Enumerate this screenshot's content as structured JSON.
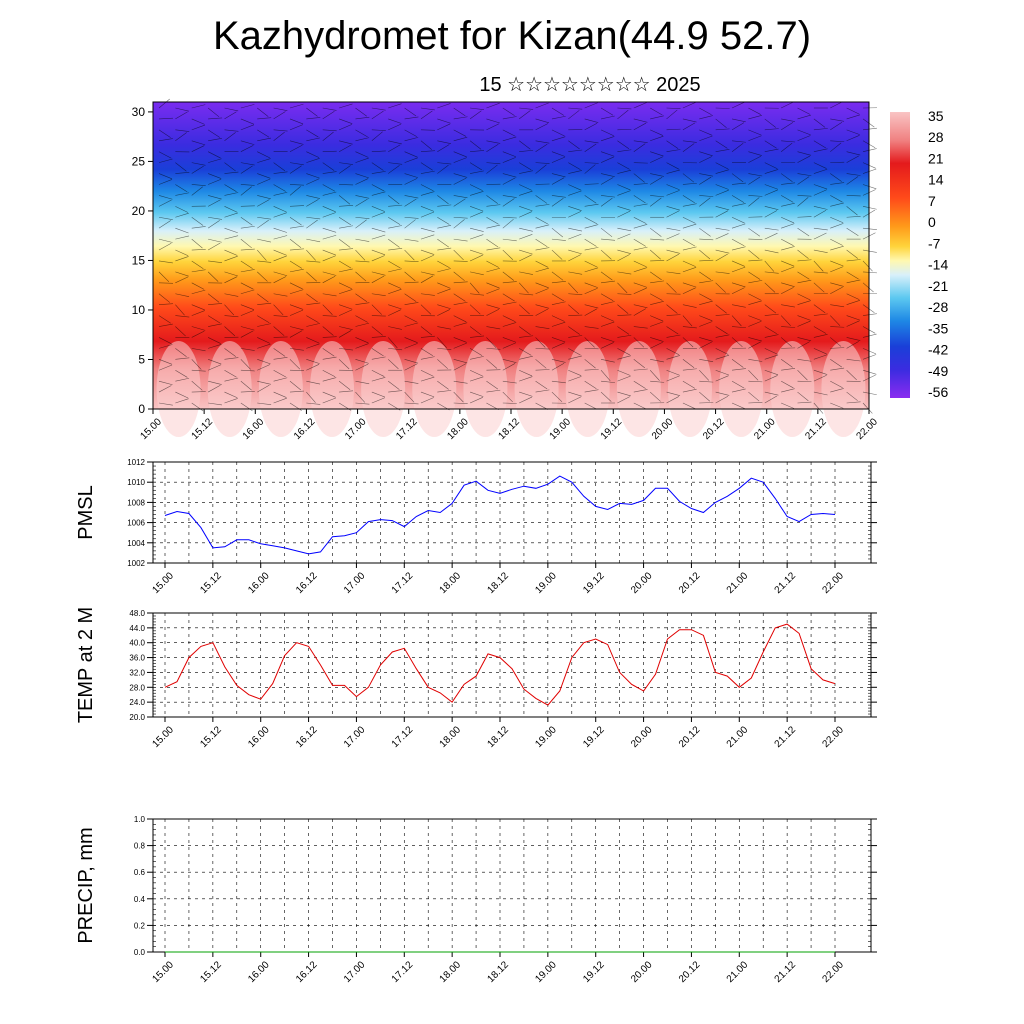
{
  "title": "Kazhydromet for Kizan(44.9 52.7)",
  "subtitle": "15 ☆☆☆☆☆☆☆☆ 2025",
  "chart_data": [
    {
      "type": "heatmap",
      "name": "cross-section",
      "x_ticks": [
        "15.00",
        "15.12",
        "16.00",
        "16.12",
        "17.00",
        "17.12",
        "18.00",
        "18.12",
        "19.00",
        "19.12",
        "20.00",
        "20.12",
        "21.00",
        "21.12",
        "22.00"
      ],
      "y_ticks": [
        "0",
        "5",
        "10",
        "15",
        "20",
        "25",
        "30"
      ],
      "ylim": [
        0,
        31
      ],
      "colorbar_labels": [
        "35",
        "28",
        "21",
        "14",
        "7",
        "0",
        "-7",
        "-14",
        "-21",
        "-28",
        "-35",
        "-42",
        "-49",
        "-56"
      ],
      "colorbar_colors": [
        "#f4b5b5",
        "#e41a1c",
        "#ff4500",
        "#ff8c00",
        "#ffd700",
        "#fff5a0",
        "#c8eafa",
        "#4fc3f7",
        "#1565c0",
        "#3b3bd8",
        "#7a2cf0"
      ],
      "description_levels_temp": [
        {
          "height": 0,
          "value": 35
        },
        {
          "height": 10,
          "value": 21
        },
        {
          "height": 16,
          "value": -7
        },
        {
          "height": 19,
          "value": -21
        },
        {
          "height": 22,
          "value": -35
        },
        {
          "height": 25,
          "value": -49
        },
        {
          "height": 28,
          "value": -56
        },
        {
          "height": 31,
          "value": -56
        }
      ]
    },
    {
      "type": "line",
      "ylabel": "PMSL",
      "color": "#0000ff",
      "ylim": [
        1002,
        1012
      ],
      "y_ticks": [
        "1002",
        "1004",
        "1006",
        "1008",
        "1010",
        "1012"
      ],
      "x_ticks": [
        "15.00",
        "15.12",
        "16.00",
        "16.12",
        "17.00",
        "17.12",
        "18.00",
        "18.12",
        "19.00",
        "19.12",
        "20.00",
        "20.12",
        "21.00",
        "21.12",
        "22.00"
      ],
      "values": [
        1006.7,
        1007.1,
        1006.9,
        1005.5,
        1003.5,
        1003.6,
        1004.3,
        1004.3,
        1003.9,
        1003.7,
        1003.5,
        1003.2,
        1002.9,
        1003.1,
        1004.6,
        1004.7,
        1005.0,
        1006.1,
        1006.3,
        1006.2,
        1005.6,
        1006.6,
        1007.2,
        1007.0,
        1007.9,
        1009.7,
        1010.1,
        1009.2,
        1008.9,
        1009.3,
        1009.6,
        1009.4,
        1009.8,
        1010.6,
        1010.0,
        1008.6,
        1007.6,
        1007.3,
        1007.9,
        1007.8,
        1008.2,
        1009.4,
        1009.4,
        1008.1,
        1007.4,
        1007.0,
        1008.0,
        1008.6,
        1009.4,
        1010.4,
        1010.0,
        1008.4,
        1006.6,
        1006.1,
        1006.8,
        1006.9,
        1006.8
      ]
    },
    {
      "type": "line",
      "ylabel": "TEMP at 2 M",
      "color": "#e00000",
      "ylim": [
        20,
        48
      ],
      "y_ticks": [
        "20.0",
        "24.0",
        "28.0",
        "32.0",
        "36.0",
        "40.0",
        "44.0",
        "48.0"
      ],
      "x_ticks": [
        "15.00",
        "15.12",
        "16.00",
        "16.12",
        "17.00",
        "17.12",
        "18.00",
        "18.12",
        "19.00",
        "19.12",
        "20.00",
        "20.12",
        "21.00",
        "21.12",
        "22.00"
      ],
      "values": [
        28.0,
        29.5,
        36.0,
        39.0,
        40.0,
        33.5,
        28.5,
        26.0,
        24.8,
        29.0,
        36.5,
        40.0,
        39.0,
        34.0,
        28.5,
        28.5,
        25.5,
        28.0,
        34.0,
        37.5,
        38.5,
        33.0,
        28.0,
        26.5,
        24.0,
        28.8,
        31.0,
        37.0,
        36.0,
        33.0,
        27.5,
        25.0,
        23.2,
        27.0,
        36.0,
        40.0,
        41.0,
        39.5,
        32.0,
        28.8,
        27.0,
        31.5,
        41.0,
        43.5,
        43.5,
        42.0,
        32.0,
        31.0,
        28.0,
        30.5,
        37.5,
        44.0,
        45.0,
        42.5,
        33.0,
        30.0,
        29.0
      ]
    },
    {
      "type": "line",
      "ylabel": "PRECIP, mm",
      "color": "#00a000",
      "ylim": [
        0,
        1
      ],
      "y_ticks": [
        "0.0",
        "0.2",
        "0.4",
        "0.6",
        "0.8",
        "1.0"
      ],
      "x_ticks": [
        "15.00",
        "15.12",
        "16.00",
        "16.12",
        "17.00",
        "17.12",
        "18.00",
        "18.12",
        "19.00",
        "19.12",
        "20.00",
        "20.12",
        "21.00",
        "21.12",
        "22.00"
      ],
      "values": [
        0,
        0,
        0,
        0,
        0,
        0,
        0,
        0,
        0,
        0,
        0,
        0,
        0,
        0,
        0,
        0,
        0,
        0,
        0,
        0,
        0,
        0,
        0,
        0,
        0,
        0,
        0,
        0,
        0,
        0,
        0,
        0,
        0,
        0,
        0,
        0,
        0,
        0,
        0,
        0,
        0,
        0,
        0,
        0,
        0,
        0,
        0,
        0,
        0,
        0,
        0,
        0,
        0,
        0,
        0,
        0,
        0
      ]
    }
  ]
}
